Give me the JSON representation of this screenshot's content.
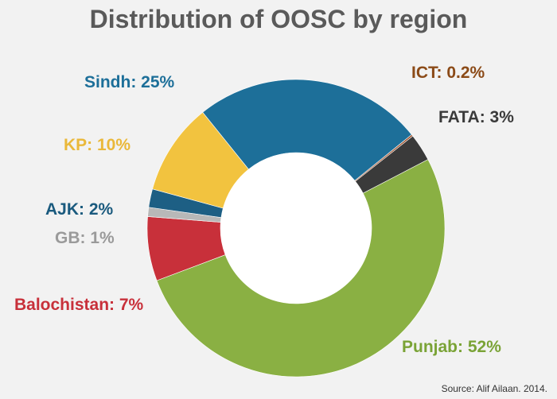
{
  "chart_data": {
    "type": "pie",
    "title": "Distribution of OOSC by region",
    "slices": [
      {
        "label": "ICT: 0.2%",
        "value": 0.2,
        "color": "#a0522d"
      },
      {
        "label": "FATA: 3%",
        "value": 3,
        "color": "#3a3a3a"
      },
      {
        "label": "Punjab: 52%",
        "value": 52,
        "color": "#8ab043"
      },
      {
        "label": "Balochistan: 7%",
        "value": 7,
        "color": "#c8303a"
      },
      {
        "label": "GB: 1%",
        "value": 1,
        "color": "#b8b8b8"
      },
      {
        "label": "AJK: 2%",
        "value": 2,
        "color": "#1d5f84"
      },
      {
        "label": "KP: 10%",
        "value": 10,
        "color": "#f2c33f"
      },
      {
        "label": "Sindh: 25%",
        "value": 25,
        "color": "#1d6f99"
      }
    ],
    "label_colors": {
      "ICT": "#8b4a17",
      "FATA": "#3a3a3a",
      "Punjab": "#7aa336",
      "Balochistan": "#c8303a",
      "GB": "#9a9a9a",
      "AJK": "#1a5a7e",
      "KP": "#eab83a",
      "Sindh": "#1d6f99"
    },
    "source": "Source: Alif Ailaan. 2014."
  }
}
